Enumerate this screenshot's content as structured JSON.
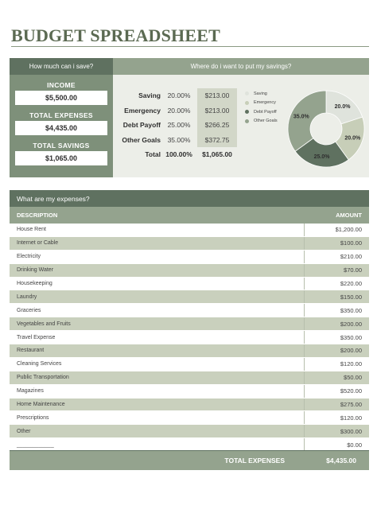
{
  "title": "BUDGET SPREADSHEET",
  "savings_panel": {
    "left_header": "How much can i save?",
    "income_label": "INCOME",
    "income_value": "$5,500.00",
    "expenses_label": "TOTAL EXPENSES",
    "expenses_value": "$4,435.00",
    "savings_label": "TOTAL SAVINGS",
    "savings_value": "$1,065.00"
  },
  "allocation": {
    "header": "Where do i want to put my savings?",
    "rows": [
      {
        "name": "Saving",
        "pct": "20.00%",
        "amount": "$213.00"
      },
      {
        "name": "Emergency",
        "pct": "20.00%",
        "amount": "$213.00"
      },
      {
        "name": "Debt Payoff",
        "pct": "25.00%",
        "amount": "$266.25"
      },
      {
        "name": "Other Goals",
        "pct": "35.00%",
        "amount": "$372.75"
      }
    ],
    "total_label": "Total",
    "total_pct": "100.00%",
    "total_amount": "$1,065.00"
  },
  "chart_data": {
    "type": "pie",
    "donut": true,
    "categories": [
      "Saving",
      "Emergency",
      "Debt Payoff",
      "Other Goals"
    ],
    "values": [
      20.0,
      20.0,
      25.0,
      35.0
    ],
    "data_labels": [
      "20.0%",
      "20.0%",
      "25.0%",
      "35.0%"
    ],
    "colors": [
      "#dfe3dc",
      "#c7ceb8",
      "#5f7160",
      "#94a38e"
    ],
    "legend_position": "left"
  },
  "expenses": {
    "header": "What are my expenses?",
    "col_description": "DESCRIPTION",
    "col_amount": "AMOUNT",
    "rows": [
      {
        "desc": "House Rent",
        "amount": "$1,200.00"
      },
      {
        "desc": "Internet or Cable",
        "amount": "$100.00"
      },
      {
        "desc": "Electricity",
        "amount": "$210.00"
      },
      {
        "desc": "Drinking Water",
        "amount": "$70.00"
      },
      {
        "desc": "Housekeeping",
        "amount": "$220.00"
      },
      {
        "desc": "Laundry",
        "amount": "$150.00"
      },
      {
        "desc": "Graceries",
        "amount": "$350.00"
      },
      {
        "desc": "Vegetables and Fruits",
        "amount": "$200.00"
      },
      {
        "desc": "Travel Expense",
        "amount": "$350.00"
      },
      {
        "desc": "Restaurant",
        "amount": "$200.00"
      },
      {
        "desc": "Cleaning Services",
        "amount": "$120.00"
      },
      {
        "desc": "Public Transportation",
        "amount": "$50.00"
      },
      {
        "desc": "Magazines",
        "amount": "$520.00"
      },
      {
        "desc": "Home Maintenance",
        "amount": "$275.00"
      },
      {
        "desc": "Prescriptions",
        "amount": "$120.00"
      },
      {
        "desc": "Other",
        "amount": "$300.00"
      },
      {
        "desc": "____________",
        "amount": "$0.00"
      }
    ],
    "total_label": "TOTAL EXPENSES",
    "total_value": "$4,435.00"
  }
}
